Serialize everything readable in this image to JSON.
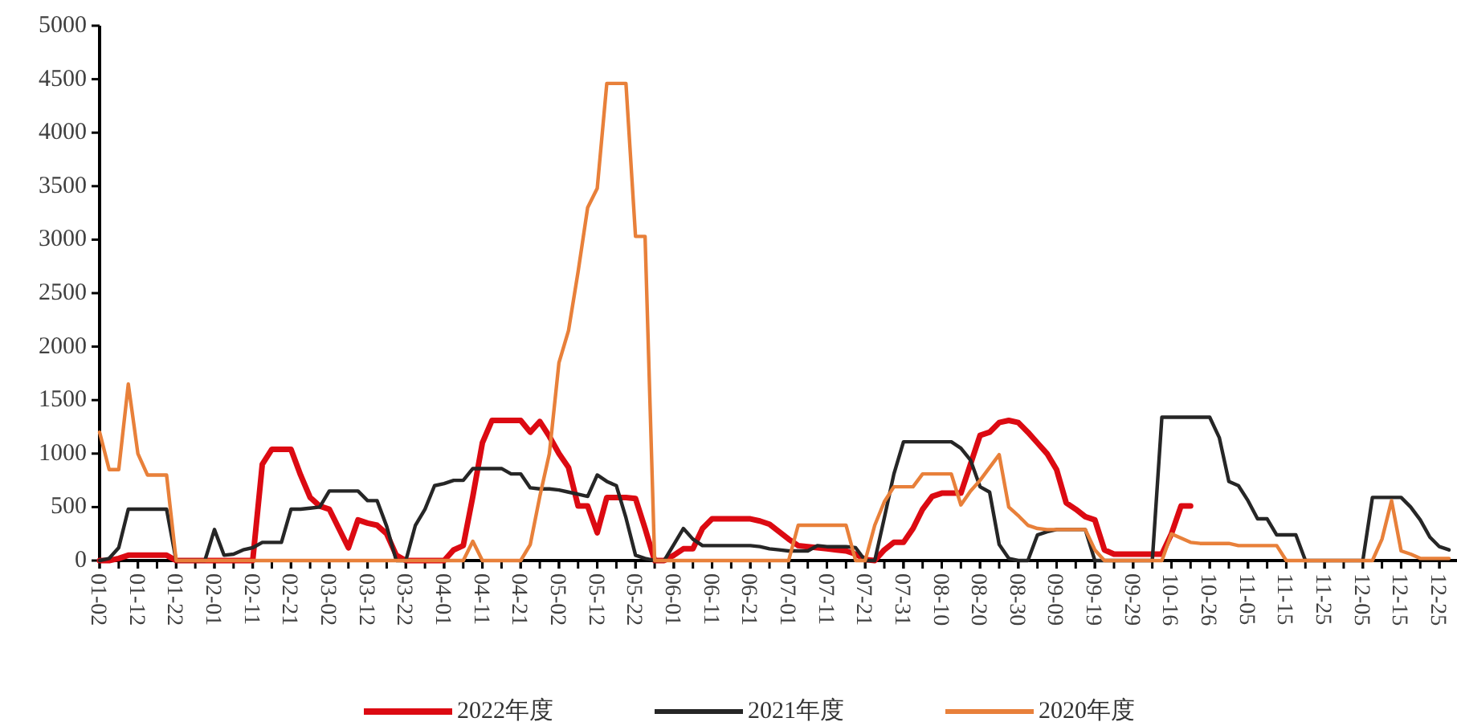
{
  "chart_data": {
    "type": "line",
    "categories": [
      "01-02",
      null,
      null,
      null,
      "01-12",
      null,
      null,
      null,
      "01-22",
      null,
      null,
      null,
      "02-01",
      null,
      null,
      null,
      "02-11",
      null,
      null,
      null,
      "02-21",
      null,
      null,
      null,
      "03-02",
      null,
      null,
      null,
      "03-12",
      null,
      null,
      null,
      "03-22",
      null,
      null,
      null,
      "04-01",
      null,
      null,
      null,
      "04-11",
      null,
      null,
      null,
      "04-21",
      null,
      null,
      null,
      "05-02",
      null,
      null,
      null,
      "05-12",
      null,
      null,
      null,
      "05-22",
      null,
      null,
      null,
      "06-01",
      null,
      null,
      null,
      "06-11",
      null,
      null,
      null,
      "06-21",
      null,
      null,
      null,
      "07-01",
      null,
      null,
      null,
      "07-11",
      null,
      null,
      null,
      "07-21",
      null,
      null,
      null,
      "07-31",
      null,
      null,
      null,
      "08-10",
      null,
      null,
      null,
      "08-20",
      null,
      null,
      null,
      "08-30",
      null,
      null,
      null,
      "09-09",
      null,
      null,
      null,
      "09-19",
      null,
      null,
      null,
      "09-29",
      null,
      null,
      null,
      "10-16",
      null,
      null,
      null,
      "10-26",
      null,
      null,
      null,
      "11-05",
      null,
      null,
      null,
      "11-15",
      null,
      null,
      null,
      "11-25",
      null,
      null,
      null,
      "12-05",
      null,
      null,
      null,
      "12-15",
      null,
      null,
      null,
      "12-25",
      null
    ],
    "series": [
      {
        "name": "2022年度",
        "color": "#dc0a12",
        "values": [
          0,
          0,
          20,
          50,
          50,
          50,
          50,
          50,
          0,
          0,
          0,
          0,
          0,
          0,
          0,
          0,
          0,
          900,
          1040,
          1040,
          1040,
          800,
          590,
          510,
          480,
          300,
          120,
          380,
          350,
          330,
          250,
          50,
          0,
          0,
          0,
          0,
          0,
          100,
          140,
          600,
          1100,
          1310,
          1310,
          1310,
          1310,
          1200,
          1300,
          1160,
          1000,
          870,
          510,
          510,
          260,
          590,
          590,
          590,
          580,
          300,
          0,
          0,
          50,
          110,
          110,
          300,
          390,
          390,
          390,
          390,
          390,
          370,
          340,
          270,
          200,
          140,
          130,
          120,
          110,
          100,
          90,
          60,
          10,
          0,
          100,
          170,
          170,
          300,
          480,
          600,
          630,
          630,
          630,
          900,
          1170,
          1200,
          1290,
          1310,
          1290,
          1200,
          1100,
          1000,
          850,
          540,
          480,
          410,
          380,
          100,
          60,
          60,
          60,
          60,
          60,
          60,
          250,
          510,
          510,
          null,
          null,
          null,
          null,
          null,
          null,
          null,
          null,
          null,
          null,
          null,
          null,
          null,
          null,
          null,
          null,
          null,
          null,
          null,
          null,
          null,
          null,
          null,
          null,
          null,
          null,
          null
        ]
      },
      {
        "name": "2021年度",
        "color": "#262626",
        "values": [
          0,
          20,
          120,
          480,
          480,
          480,
          480,
          480,
          0,
          0,
          0,
          0,
          290,
          50,
          60,
          100,
          120,
          170,
          170,
          170,
          480,
          480,
          490,
          500,
          650,
          650,
          650,
          650,
          560,
          560,
          320,
          0,
          0,
          330,
          480,
          700,
          720,
          750,
          750,
          860,
          860,
          860,
          860,
          810,
          810,
          680,
          670,
          670,
          660,
          640,
          620,
          600,
          800,
          740,
          700,
          400,
          50,
          20,
          0,
          0,
          150,
          300,
          200,
          140,
          140,
          140,
          140,
          140,
          140,
          130,
          110,
          100,
          90,
          90,
          90,
          140,
          130,
          130,
          130,
          120,
          0,
          0,
          400,
          810,
          1110,
          1110,
          1110,
          1110,
          1110,
          1110,
          1050,
          940,
          690,
          640,
          150,
          20,
          0,
          0,
          240,
          270,
          290,
          290,
          290,
          290,
          0,
          0,
          0,
          0,
          0,
          0,
          0,
          1340,
          1340,
          1340,
          1340,
          1340,
          1340,
          1150,
          740,
          700,
          560,
          390,
          390,
          240,
          240,
          240,
          0,
          0,
          0,
          0,
          0,
          0,
          0,
          590,
          590,
          590,
          590,
          500,
          380,
          220,
          130,
          100
        ]
      },
      {
        "name": "2020年度",
        "color": "#e8803a",
        "values": [
          1200,
          850,
          850,
          1650,
          1000,
          800,
          800,
          800,
          0,
          0,
          0,
          0,
          0,
          0,
          0,
          0,
          0,
          0,
          0,
          0,
          0,
          0,
          0,
          0,
          0,
          0,
          0,
          0,
          0,
          0,
          0,
          0,
          0,
          0,
          0,
          0,
          0,
          0,
          0,
          180,
          0,
          0,
          0,
          0,
          0,
          150,
          600,
          1000,
          1850,
          2150,
          2700,
          3300,
          3480,
          4460,
          4460,
          4460,
          3030,
          3030,
          0,
          0,
          0,
          0,
          0,
          0,
          0,
          0,
          0,
          0,
          0,
          0,
          0,
          0,
          0,
          330,
          330,
          330,
          330,
          330,
          330,
          0,
          0,
          330,
          550,
          690,
          690,
          690,
          810,
          810,
          810,
          810,
          520,
          650,
          750,
          870,
          990,
          500,
          420,
          330,
          300,
          290,
          290,
          290,
          290,
          290,
          100,
          0,
          0,
          0,
          0,
          0,
          0,
          0,
          250,
          210,
          170,
          160,
          160,
          160,
          160,
          140,
          140,
          140,
          140,
          140,
          0,
          0,
          0,
          0,
          0,
          0,
          0,
          0,
          0,
          0,
          200,
          560,
          90,
          60,
          20,
          20,
          20,
          20
        ]
      }
    ],
    "ylim": [
      0,
      5000
    ],
    "yticks": [
      0,
      500,
      1000,
      1500,
      2000,
      2500,
      3000,
      3500,
      4000,
      4500,
      5000
    ],
    "legend": "bottom"
  }
}
